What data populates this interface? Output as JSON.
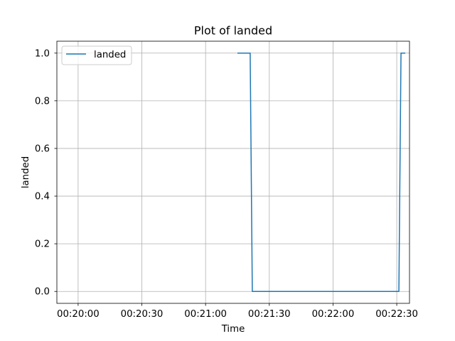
{
  "chart_data": {
    "type": "line",
    "title": "Plot of landed",
    "xlabel": "Time",
    "ylabel": "landed",
    "grid": true,
    "legend_position": "upper-left",
    "x_ticks": [
      "00:20:00",
      "00:20:30",
      "00:21:00",
      "00:21:30",
      "00:22:00",
      "00:22:30"
    ],
    "y_ticks": [
      "0.0",
      "0.2",
      "0.4",
      "0.6",
      "0.8",
      "1.0"
    ],
    "xlim": [
      "00:19:50",
      "00:22:36"
    ],
    "ylim": [
      -0.05,
      1.05
    ],
    "series": [
      {
        "name": "landed",
        "color": "#1f77b4",
        "x": [
          "00:21:15",
          "00:21:21",
          "00:21:22",
          "00:22:31",
          "00:22:32",
          "00:22:34"
        ],
        "y": [
          1,
          1,
          0,
          0,
          1,
          1
        ]
      }
    ]
  }
}
